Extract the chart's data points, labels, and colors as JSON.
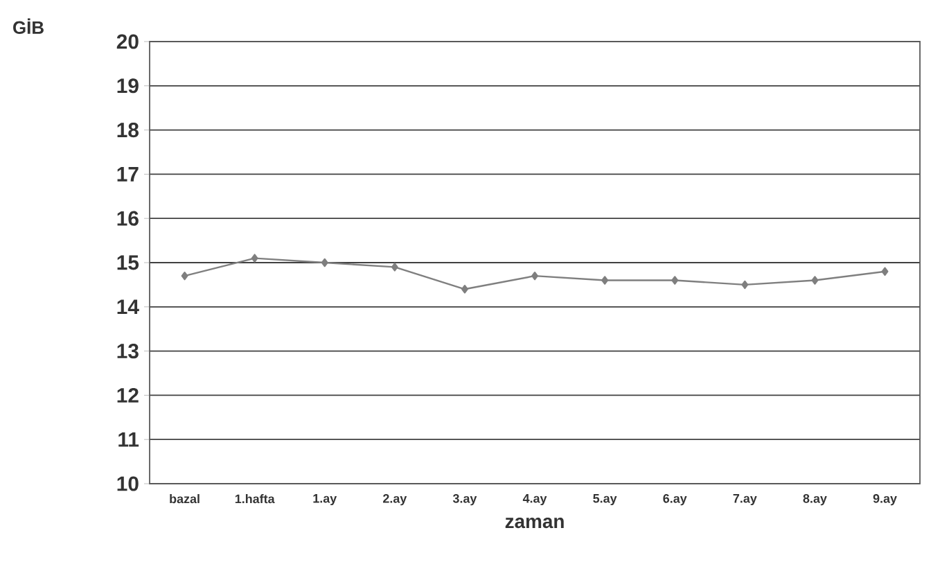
{
  "chart_data": {
    "type": "line",
    "ylabel": "GİB",
    "xlabel": "zaman",
    "categories": [
      "bazal",
      "1.hafta",
      "1.ay",
      "2.ay",
      "3.ay",
      "4.ay",
      "5.ay",
      "6.ay",
      "7.ay",
      "8.ay",
      "9.ay"
    ],
    "values": [
      14.7,
      15.1,
      15.0,
      14.9,
      14.4,
      14.7,
      14.6,
      14.6,
      14.5,
      14.6,
      14.8
    ],
    "color": "#7f7f7f",
    "ylim": [
      10,
      20
    ],
    "yticks": [
      10,
      11,
      12,
      13,
      14,
      15,
      16,
      17,
      18,
      19,
      20
    ],
    "grid": "y",
    "marker": "diamond",
    "line_style": "solid"
  }
}
